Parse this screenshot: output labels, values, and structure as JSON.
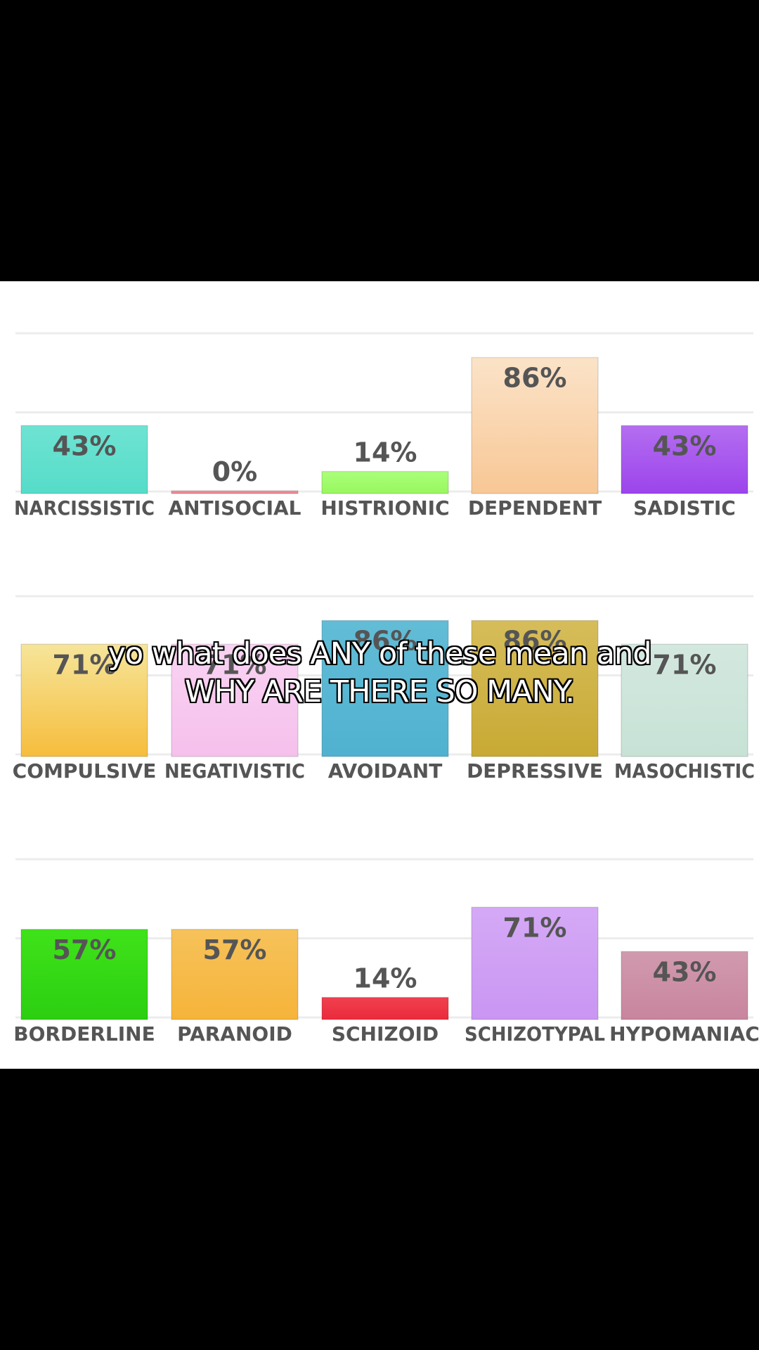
{
  "caption": {
    "line1": "yo what does ANY of these mean and",
    "line2": "WHY ARE THERE SO MANY."
  },
  "chart_data": [
    {
      "type": "bar",
      "ylim": [
        0,
        100
      ],
      "grid": true,
      "categories": [
        "NARCISSISTIC",
        "ANTISOCIAL",
        "HISTRIONIC",
        "DEPENDENT",
        "SADISTIC"
      ],
      "values": [
        43,
        0,
        14,
        86,
        43
      ],
      "value_labels": [
        "43%",
        "0%",
        "14%",
        "86%",
        "43%"
      ],
      "colors": [
        [
          "#6fe3d3",
          "#55dcc8"
        ],
        [
          "#f29aa5",
          "#ee7f8d"
        ],
        [
          "#aaff7a",
          "#98f75e"
        ],
        [
          "#fbe3c8",
          "#f8c795"
        ],
        [
          "#b46ef0",
          "#9c44ec"
        ]
      ]
    },
    {
      "type": "bar",
      "ylim": [
        0,
        100
      ],
      "grid": true,
      "categories": [
        "COMPULSIVE",
        "NEGATIVISTIC",
        "AVOIDANT",
        "DEPRESSIVE",
        "MASOCHISTIC"
      ],
      "values": [
        71,
        71,
        86,
        86,
        71
      ],
      "value_labels": [
        "71%",
        "71%",
        "86%",
        "86%",
        "71%"
      ],
      "colors": [
        [
          "#f6e59a",
          "#f6bd3c"
        ],
        [
          "#f9d3f3",
          "#f6c0ec"
        ],
        [
          "#62bcd6",
          "#50b2d0"
        ],
        [
          "#d6bd5a",
          "#c8a934"
        ],
        [
          "#d3e8df",
          "#c8e2d6"
        ]
      ]
    },
    {
      "type": "bar",
      "ylim": [
        0,
        100
      ],
      "grid": true,
      "categories": [
        "BORDERLINE",
        "PARANOID",
        "SCHIZOID",
        "SCHIZOTYPAL",
        "HYPOMANIAC"
      ],
      "values": [
        57,
        57,
        14,
        71,
        43
      ],
      "value_labels": [
        "57%",
        "57%",
        "14%",
        "71%",
        "43%"
      ],
      "colors": [
        [
          "#3fe21a",
          "#2ccf10"
        ],
        [
          "#f6c25a",
          "#f6b43a"
        ],
        [
          "#f0404f",
          "#ea2b3c"
        ],
        [
          "#d5a9f6",
          "#c996f2"
        ],
        [
          "#d19aae",
          "#c8859e"
        ]
      ]
    }
  ]
}
